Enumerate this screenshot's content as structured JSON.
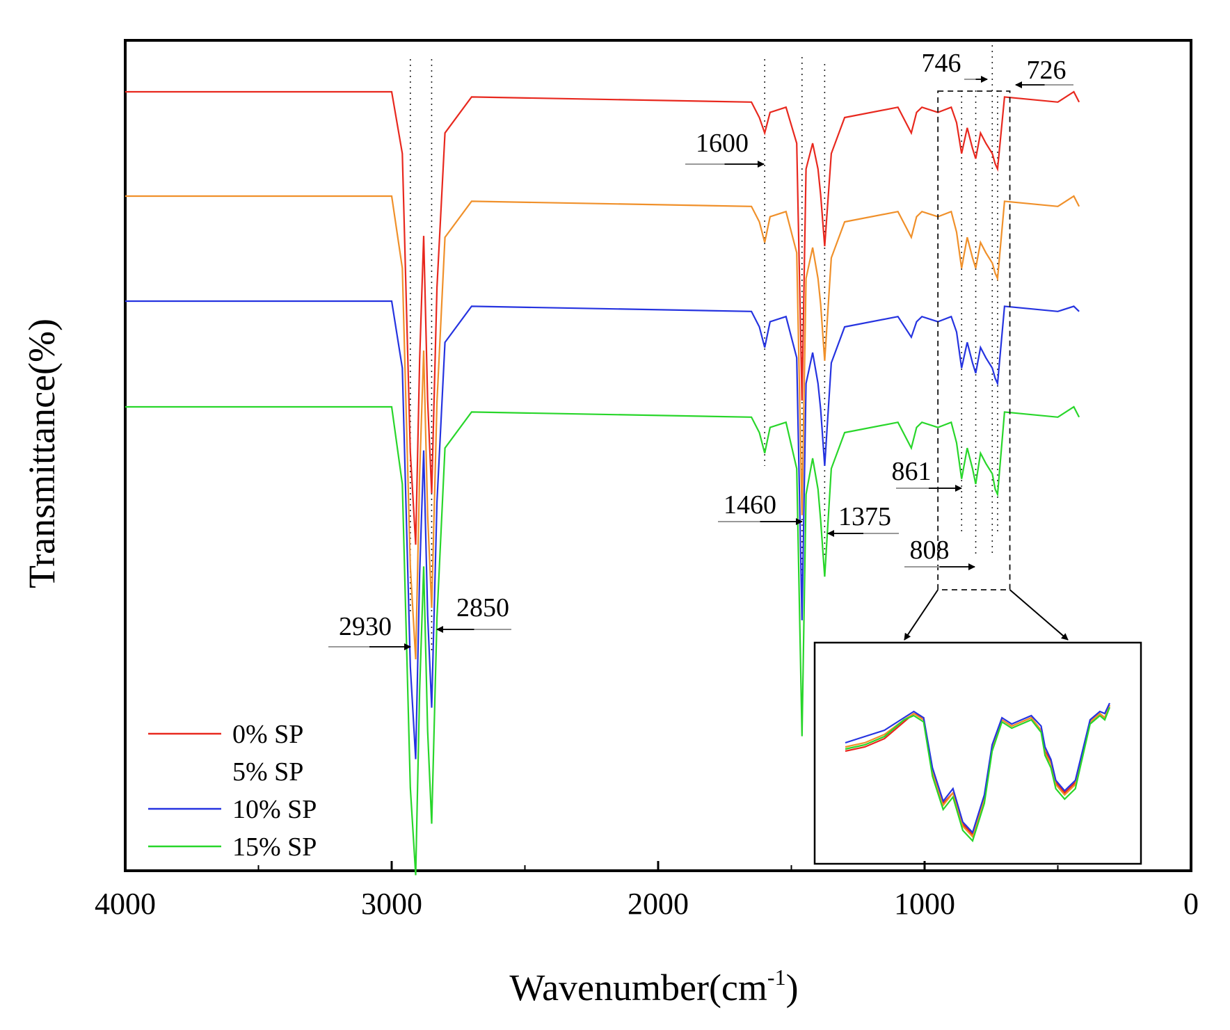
{
  "chart_data": {
    "type": "line",
    "title": "",
    "xlabel": "Wavenumber(cm",
    "xlabel_sup": "-1",
    "xlabel_close": ")",
    "ylabel": "Transmittance(%)",
    "xlim": [
      4000,
      0
    ],
    "x_reversed": true,
    "xticks": [
      "4000",
      "3000",
      "2000",
      "1000",
      "0"
    ],
    "xtick_values": [
      4000,
      3000,
      2000,
      1000,
      0
    ],
    "y_ticks_shown": false,
    "note": "Spectra are vertically offset; y values are relative transmittance (0-100) within each trace",
    "x": [
      3000,
      2960,
      2930,
      2910,
      2895,
      2880,
      2865,
      2850,
      2830,
      2800,
      2700,
      1650,
      1620,
      1600,
      1580,
      1520,
      1480,
      1460,
      1445,
      1420,
      1400,
      1390,
      1375,
      1350,
      1300,
      1100,
      1050,
      1030,
      1010,
      950,
      900,
      880,
      861,
      840,
      820,
      808,
      790,
      770,
      746,
      735,
      726,
      700,
      500,
      440,
      420
    ],
    "series": [
      {
        "name": "0% SP",
        "color": "#e8281e",
        "values": [
          100,
          88,
          30,
          12,
          48,
          72,
          40,
          22,
          62,
          92,
          99,
          98,
          95,
          92,
          96,
          97,
          90,
          40,
          85,
          90,
          85,
          80,
          70,
          88,
          95,
          97,
          92,
          96,
          97,
          96,
          97,
          94,
          88,
          93,
          89,
          87,
          92,
          90,
          88,
          86,
          85,
          99,
          98,
          100,
          98
        ]
      },
      {
        "name": "5% SP",
        "color": "#f0902a",
        "values": [
          100,
          86,
          28,
          10,
          46,
          70,
          38,
          20,
          60,
          92,
          99,
          98,
          95,
          91,
          96,
          97,
          89,
          38,
          84,
          90,
          84,
          79,
          68,
          88,
          95,
          97,
          92,
          96,
          97,
          96,
          97,
          93,
          86,
          92,
          88,
          86,
          91,
          89,
          87,
          85,
          84,
          99,
          98,
          100,
          98
        ]
      },
      {
        "name": "10% SP",
        "color": "#2533e0",
        "values": [
          100,
          87,
          29,
          11,
          47,
          71,
          39,
          21,
          61,
          92,
          99,
          98,
          95,
          91,
          96,
          97,
          89,
          38,
          84,
          90,
          84,
          79,
          68,
          88,
          95,
          97,
          93,
          96,
          97,
          96,
          97,
          94,
          87,
          92,
          88,
          86,
          91,
          89,
          87,
          85,
          84,
          99,
          98,
          99,
          98
        ]
      },
      {
        "name": "15% SP",
        "color": "#28d62a",
        "values": [
          100,
          85,
          26,
          9,
          45,
          69,
          37,
          19,
          59,
          92,
          99,
          98,
          95,
          91,
          96,
          97,
          88,
          36,
          83,
          90,
          84,
          78,
          67,
          88,
          95,
          97,
          92,
          96,
          97,
          96,
          97,
          93,
          86,
          92,
          88,
          85,
          91,
          89,
          87,
          84,
          83,
          99,
          98,
          100,
          98
        ]
      }
    ],
    "peak_annotations": [
      {
        "label": "2930",
        "wavenumber": 2930
      },
      {
        "label": "2850",
        "wavenumber": 2850
      },
      {
        "label": "1600",
        "wavenumber": 1600
      },
      {
        "label": "1460",
        "wavenumber": 1460
      },
      {
        "label": "1375",
        "wavenumber": 1375
      },
      {
        "label": "861",
        "wavenumber": 861
      },
      {
        "label": "808",
        "wavenumber": 808
      },
      {
        "label": "746",
        "wavenumber": 746
      },
      {
        "label": "726",
        "wavenumber": 726
      }
    ],
    "inset": {
      "description": "zoom of 950-680 cm-1 region",
      "x_range": [
        950,
        680
      ],
      "x": [
        950,
        930,
        910,
        890,
        880,
        870,
        861,
        850,
        840,
        830,
        820,
        808,
        800,
        790,
        780,
        770,
        760,
        750,
        746,
        740,
        735,
        726,
        715,
        700,
        690,
        685,
        680
      ],
      "series_values": [
        [
          70,
          72,
          76,
          84,
          88,
          86,
          60,
          45,
          50,
          35,
          30,
          48,
          72,
          85,
          82,
          84,
          86,
          80,
          70,
          65,
          55,
          50,
          55,
          84,
          88,
          86,
          92
        ],
        [
          72,
          74,
          78,
          85,
          88,
          85,
          60,
          44,
          50,
          34,
          29,
          47,
          71,
          85,
          82,
          84,
          86,
          80,
          69,
          64,
          54,
          49,
          54,
          84,
          88,
          86,
          92
        ],
        [
          74,
          77,
          80,
          86,
          89,
          86,
          62,
          46,
          52,
          36,
          31,
          49,
          73,
          86,
          83,
          85,
          87,
          82,
          72,
          66,
          56,
          51,
          56,
          85,
          89,
          88,
          93
        ],
        [
          71,
          73,
          77,
          85,
          87,
          84,
          58,
          42,
          48,
          32,
          27,
          45,
          70,
          84,
          81,
          83,
          85,
          79,
          68,
          62,
          52,
          47,
          52,
          83,
          87,
          85,
          91
        ]
      ]
    },
    "legend_position": "bottom-left"
  },
  "legend": {
    "items": [
      "0% SP",
      "5% SP",
      "10% SP",
      "15% SP"
    ]
  }
}
